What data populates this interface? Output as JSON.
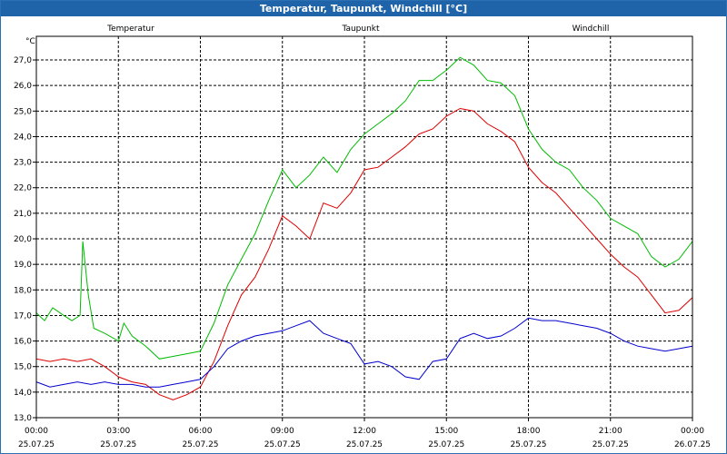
{
  "window": {
    "title": "Temperatur, Taupunkt, Windchill [°C]"
  },
  "chart_data": {
    "type": "line",
    "title": "Temperatur, Taupunkt, Windchill [°C]",
    "ylabel": "°C",
    "xlabel": "",
    "ylim": [
      13.0,
      27.6
    ],
    "xlim": [
      0,
      24
    ],
    "yticks": [
      "13,0",
      "14,0",
      "15,0",
      "16,0",
      "17,0",
      "18,0",
      "19,0",
      "20,0",
      "21,0",
      "22,0",
      "23,0",
      "24,0",
      "25,0",
      "26,0",
      "27,0"
    ],
    "xticks": [
      {
        "time": "00:00",
        "date": "25.07.25"
      },
      {
        "time": "03:00",
        "date": "25.07.25"
      },
      {
        "time": "06:00",
        "date": "25.07.25"
      },
      {
        "time": "09:00",
        "date": "25.07.25"
      },
      {
        "time": "12:00",
        "date": "25.07.25"
      },
      {
        "time": "15:00",
        "date": "25.07.25"
      },
      {
        "time": "18:00",
        "date": "25.07.25"
      },
      {
        "time": "21:00",
        "date": "25.07.25"
      },
      {
        "time": "00:00",
        "date": "26.07.25"
      }
    ],
    "grid": true,
    "legend": "top",
    "series": [
      {
        "name": "Temperatur",
        "color": "#dd0000",
        "points": [
          [
            0,
            15.3
          ],
          [
            0.5,
            15.2
          ],
          [
            1,
            15.3
          ],
          [
            1.5,
            15.2
          ],
          [
            2,
            15.3
          ],
          [
            2.5,
            15.0
          ],
          [
            3,
            14.6
          ],
          [
            3.5,
            14.4
          ],
          [
            4,
            14.3
          ],
          [
            4.5,
            13.9
          ],
          [
            5,
            13.7
          ],
          [
            5.5,
            13.9
          ],
          [
            6,
            14.2
          ],
          [
            6.5,
            15.2
          ],
          [
            7,
            16.6
          ],
          [
            7.5,
            17.8
          ],
          [
            8,
            18.5
          ],
          [
            8.5,
            19.6
          ],
          [
            9,
            20.9
          ],
          [
            9.5,
            20.5
          ],
          [
            10,
            20.0
          ],
          [
            10.5,
            21.4
          ],
          [
            11,
            21.2
          ],
          [
            11.5,
            21.8
          ],
          [
            12,
            22.7
          ],
          [
            12.5,
            22.8
          ],
          [
            13,
            23.2
          ],
          [
            13.5,
            23.6
          ],
          [
            14,
            24.1
          ],
          [
            14.5,
            24.3
          ],
          [
            15,
            24.8
          ],
          [
            15.5,
            25.1
          ],
          [
            16,
            25.0
          ],
          [
            16.5,
            24.5
          ],
          [
            17,
            24.2
          ],
          [
            17.5,
            23.8
          ],
          [
            18,
            22.8
          ],
          [
            18.5,
            22.2
          ],
          [
            19,
            21.8
          ],
          [
            19.5,
            21.2
          ],
          [
            20,
            20.6
          ],
          [
            20.5,
            20.0
          ],
          [
            21,
            19.4
          ],
          [
            21.5,
            18.9
          ],
          [
            22,
            18.5
          ],
          [
            22.5,
            17.8
          ],
          [
            23,
            17.1
          ],
          [
            23.5,
            17.2
          ],
          [
            24,
            17.7
          ]
        ]
      },
      {
        "name": "Taupunkt",
        "color": "#0000cc",
        "points": [
          [
            0,
            14.4
          ],
          [
            0.5,
            14.2
          ],
          [
            1,
            14.3
          ],
          [
            1.5,
            14.4
          ],
          [
            2,
            14.3
          ],
          [
            2.5,
            14.4
          ],
          [
            3,
            14.3
          ],
          [
            3.5,
            14.3
          ],
          [
            4,
            14.2
          ],
          [
            4.5,
            14.2
          ],
          [
            5,
            14.3
          ],
          [
            5.5,
            14.4
          ],
          [
            6,
            14.5
          ],
          [
            6.5,
            15.0
          ],
          [
            7,
            15.7
          ],
          [
            7.5,
            16.0
          ],
          [
            8,
            16.2
          ],
          [
            8.5,
            16.3
          ],
          [
            9,
            16.4
          ],
          [
            9.5,
            16.6
          ],
          [
            10,
            16.8
          ],
          [
            10.5,
            16.3
          ],
          [
            11,
            16.1
          ],
          [
            11.5,
            15.9
          ],
          [
            12,
            15.1
          ],
          [
            12.5,
            15.2
          ],
          [
            13,
            15.0
          ],
          [
            13.5,
            14.6
          ],
          [
            14,
            14.5
          ],
          [
            14.5,
            15.2
          ],
          [
            15,
            15.3
          ],
          [
            15.5,
            16.1
          ],
          [
            16,
            16.3
          ],
          [
            16.5,
            16.1
          ],
          [
            17,
            16.2
          ],
          [
            17.5,
            16.5
          ],
          [
            18,
            16.9
          ],
          [
            18.5,
            16.8
          ],
          [
            19,
            16.8
          ],
          [
            19.5,
            16.7
          ],
          [
            20,
            16.6
          ],
          [
            20.5,
            16.5
          ],
          [
            21,
            16.3
          ],
          [
            21.5,
            16.0
          ],
          [
            22,
            15.8
          ],
          [
            22.5,
            15.7
          ],
          [
            23,
            15.6
          ],
          [
            23.5,
            15.7
          ],
          [
            24,
            15.8
          ]
        ]
      },
      {
        "name": "Windchill",
        "color": "#00bb00",
        "points": [
          [
            0,
            17.1
          ],
          [
            0.3,
            16.8
          ],
          [
            0.6,
            17.3
          ],
          [
            1,
            17.0
          ],
          [
            1.3,
            16.8
          ],
          [
            1.6,
            17.0
          ],
          [
            1.7,
            19.9
          ],
          [
            1.9,
            17.8
          ],
          [
            2.1,
            16.5
          ],
          [
            2.5,
            16.3
          ],
          [
            3,
            16.0
          ],
          [
            3.2,
            16.7
          ],
          [
            3.5,
            16.2
          ],
          [
            4,
            15.8
          ],
          [
            4.5,
            15.3
          ],
          [
            5,
            15.4
          ],
          [
            5.5,
            15.5
          ],
          [
            6,
            15.6
          ],
          [
            6.5,
            16.7
          ],
          [
            7,
            18.2
          ],
          [
            7.5,
            19.2
          ],
          [
            8,
            20.2
          ],
          [
            8.5,
            21.5
          ],
          [
            9,
            22.7
          ],
          [
            9.5,
            22.0
          ],
          [
            10,
            22.5
          ],
          [
            10.5,
            23.2
          ],
          [
            11,
            22.6
          ],
          [
            11.5,
            23.5
          ],
          [
            12,
            24.1
          ],
          [
            12.5,
            24.5
          ],
          [
            13,
            24.9
          ],
          [
            13.5,
            25.4
          ],
          [
            14,
            26.2
          ],
          [
            14.5,
            26.2
          ],
          [
            15,
            26.6
          ],
          [
            15.5,
            27.1
          ],
          [
            16,
            26.8
          ],
          [
            16.5,
            26.2
          ],
          [
            17,
            26.1
          ],
          [
            17.5,
            25.6
          ],
          [
            18,
            24.3
          ],
          [
            18.5,
            23.5
          ],
          [
            19,
            23.0
          ],
          [
            19.5,
            22.7
          ],
          [
            20,
            22.0
          ],
          [
            20.5,
            21.5
          ],
          [
            21,
            20.8
          ],
          [
            21.5,
            20.5
          ],
          [
            22,
            20.2
          ],
          [
            22.5,
            19.3
          ],
          [
            23,
            18.9
          ],
          [
            23.5,
            19.2
          ],
          [
            24,
            19.9
          ]
        ]
      }
    ]
  }
}
